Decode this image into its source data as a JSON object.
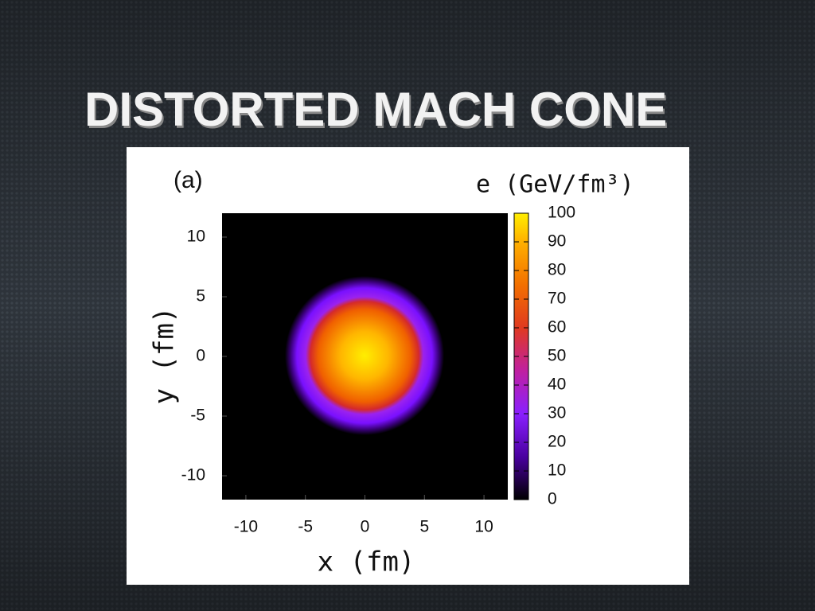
{
  "slide": {
    "title": "DISTORTED MACH CONE"
  },
  "chart_data": {
    "type": "heatmap",
    "panel_label": "(a)",
    "x_label": "x (fm)",
    "y_label": "y (fm)",
    "colorbar_label": "e (GeV/fm³)",
    "xlim": [
      -12,
      12
    ],
    "xticks": [
      -10,
      -5,
      0,
      5,
      10
    ],
    "ylim": [
      -12,
      12
    ],
    "yticks": [
      -10,
      -5,
      0,
      5,
      10
    ],
    "clim": [
      0,
      100
    ],
    "cticks": [
      0,
      10,
      20,
      30,
      40,
      50,
      60,
      70,
      80,
      90,
      100
    ]
  }
}
